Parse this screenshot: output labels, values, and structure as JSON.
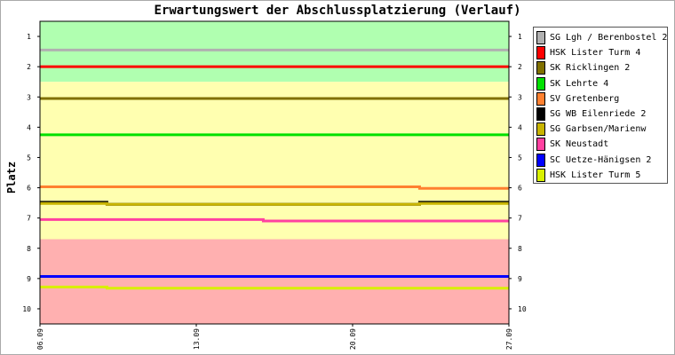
{
  "chart_data": {
    "type": "line",
    "title": "Erwartungswert der Abschlussplatzierung (Verlauf)",
    "ylabel": "Platz",
    "xlabel": "",
    "ylim": [
      0.5,
      10.5
    ],
    "y_inverted": true,
    "yticks": [
      1,
      2,
      3,
      4,
      5,
      6,
      7,
      8,
      9,
      10
    ],
    "x_range": [
      "06.09",
      "27.09"
    ],
    "xticks": [
      "06.09",
      "13.09",
      "20.09",
      "27.09"
    ],
    "grid": false,
    "legend_position": "right",
    "bands": [
      {
        "from": 0.5,
        "to": 2.5,
        "color": "#b0ffb0"
      },
      {
        "from": 2.5,
        "to": 7.7,
        "color": "#ffffb0"
      },
      {
        "from": 7.7,
        "to": 10.5,
        "color": "#ffb0b0"
      }
    ],
    "series": [
      {
        "name": "SG Lgh / Berenbostel 2",
        "color": "#b0b0b0",
        "points": [
          [
            "06.09",
            1.45
          ],
          [
            "27.09",
            1.45
          ]
        ]
      },
      {
        "name": "HSK Lister Turm 4",
        "color": "#ff0000",
        "points": [
          [
            "06.09",
            2.0
          ],
          [
            "27.09",
            2.0
          ]
        ]
      },
      {
        "name": "SK Ricklingen 2",
        "color": "#807000",
        "points": [
          [
            "06.09",
            3.05
          ],
          [
            "27.09",
            3.05
          ]
        ]
      },
      {
        "name": "SK Lehrte 4",
        "color": "#00e000",
        "points": [
          [
            "06.09",
            4.25
          ],
          [
            "27.09",
            4.25
          ]
        ]
      },
      {
        "name": "SV Gretenberg",
        "color": "#ff8030",
        "points": [
          [
            "06.09",
            5.97
          ],
          [
            "23.09",
            5.97
          ],
          [
            "23.09",
            6.02
          ],
          [
            "27.09",
            6.02
          ]
        ]
      },
      {
        "name": "SG WB Eilenriede 2",
        "color": "#000000",
        "points": [
          [
            "06.09",
            6.48
          ],
          [
            "09.09",
            6.48
          ],
          [
            "09.09",
            6.55
          ],
          [
            "23.09",
            6.55
          ],
          [
            "23.09",
            6.48
          ],
          [
            "27.09",
            6.48
          ]
        ]
      },
      {
        "name": "SG Garbsen/Marienw",
        "color": "#c8b400",
        "points": [
          [
            "06.09",
            6.52
          ],
          [
            "09.09",
            6.52
          ],
          [
            "09.09",
            6.55
          ],
          [
            "23.09",
            6.55
          ],
          [
            "23.09",
            6.52
          ],
          [
            "27.09",
            6.52
          ]
        ]
      },
      {
        "name": "SK Neustadt",
        "color": "#ff40a0",
        "points": [
          [
            "06.09",
            7.05
          ],
          [
            "16.09",
            7.05
          ],
          [
            "16.09",
            7.1
          ],
          [
            "27.09",
            7.1
          ]
        ]
      },
      {
        "name": "SC Uetze-Hänigsen 2",
        "color": "#0000ff",
        "points": [
          [
            "06.09",
            8.93
          ],
          [
            "27.09",
            8.93
          ]
        ]
      },
      {
        "name": "HSK Lister Turm 5",
        "color": "#d8f000",
        "points": [
          [
            "06.09",
            9.28
          ],
          [
            "09.09",
            9.28
          ],
          [
            "09.09",
            9.32
          ],
          [
            "27.09",
            9.32
          ]
        ]
      }
    ]
  }
}
